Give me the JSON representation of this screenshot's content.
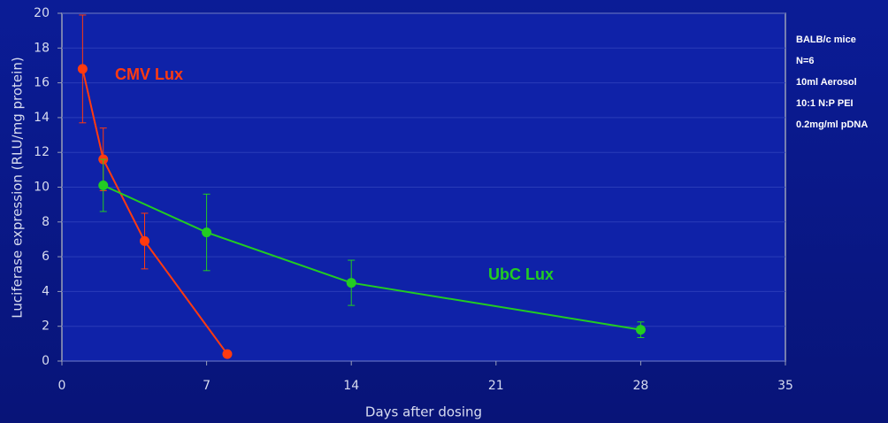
{
  "chart_data": {
    "type": "line",
    "xlabel": "Days after dosing",
    "ylabel": "Luciferase expression (RLU/mg protein)",
    "xlim": [
      0,
      35
    ],
    "xticks": [
      0,
      7,
      14,
      21,
      28,
      35
    ],
    "ylim": [
      0,
      20
    ],
    "yticks": [
      0,
      2,
      4,
      6,
      8,
      10,
      12,
      14,
      16,
      18,
      20
    ],
    "grid": true,
    "series": [
      {
        "name": "CMV Lux",
        "color": "#ff3a10",
        "x": [
          1,
          2,
          4,
          8
        ],
        "values": [
          16.8,
          11.6,
          6.9,
          0.4
        ],
        "errors": [
          3.1,
          1.8,
          1.6,
          0.1
        ]
      },
      {
        "name": "UbC Lux",
        "color": "#22cc22",
        "x": [
          2,
          7,
          14,
          28
        ],
        "values": [
          10.1,
          7.4,
          4.5,
          1.8
        ],
        "errors": [
          1.5,
          2.2,
          1.3,
          0.45
        ]
      }
    ],
    "notes": [
      "BALB/c mice",
      "N=6",
      "10ml Aerosol",
      "10:1 N:P PEI",
      "0.2mg/ml pDNA"
    ]
  }
}
